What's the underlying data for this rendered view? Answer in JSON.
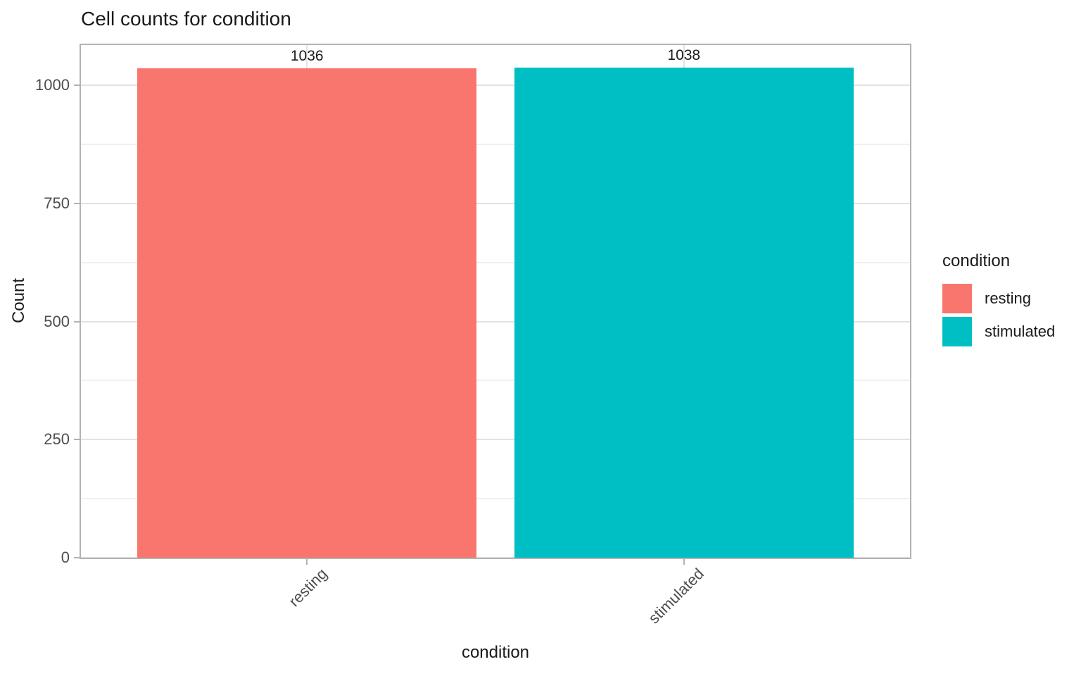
{
  "chart_data": {
    "type": "bar",
    "title": "Cell counts for condition",
    "xlabel": "condition",
    "ylabel": "Count",
    "categories": [
      "resting",
      "stimulated"
    ],
    "values": [
      1036,
      1038
    ],
    "bar_labels": [
      "1036",
      "1038"
    ],
    "bar_colors": [
      "#F8766D",
      "#00BFC4"
    ],
    "ylim": [
      0,
      1085
    ],
    "yticks": [
      0,
      250,
      500,
      750,
      1000
    ],
    "yticks_minor": [
      125,
      375,
      625,
      875
    ],
    "grid": "horizontal major+minor lines; vertical major line at each category center",
    "legend": {
      "title": "condition",
      "position": "right",
      "entries": [
        {
          "label": "resting",
          "color": "#F8766D"
        },
        {
          "label": "stimulated",
          "color": "#00BFC4"
        }
      ]
    },
    "theme_colors": {
      "panel_border": "#b3b3b3",
      "tick_mark": "#b3b3b3",
      "grid_major": "#e2e2e2",
      "grid_minor": "#f0f0f0",
      "tick_label": "#4d4d4d",
      "axis_title": "#1a1a1a",
      "chart_title": "#1a1a1a",
      "bar_label": "#1a1a1a",
      "legend_label": "#1a1a1a"
    }
  }
}
